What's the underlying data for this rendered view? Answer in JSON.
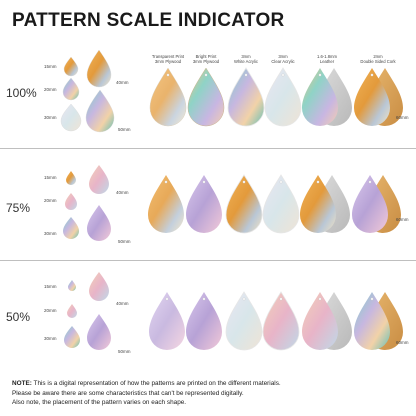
{
  "title": "PATTERN SCALE INDICATOR",
  "columns": [
    {
      "line1": "Transparent Print",
      "line2": "3mm Plywood"
    },
    {
      "line1": "Bright Print",
      "line2": "3mm Plywood"
    },
    {
      "line1": "3mm",
      "line2": "White Acrylic"
    },
    {
      "line1": "3mm",
      "line2": "Clear Acrylic"
    },
    {
      "line1": "1.6-1.8mm",
      "line2": "Leather"
    },
    {
      "line1": "2mm",
      "line2": "Double Sided Cork"
    }
  ],
  "rows": [
    {
      "scale": "100%",
      "size_labels": [
        "15mm",
        "20mm",
        "30mm",
        "40mm",
        "50mm"
      ],
      "row_label": "60mm"
    },
    {
      "scale": "75%",
      "size_labels": [
        "15mm",
        "20mm",
        "30mm",
        "40mm",
        "50mm"
      ],
      "row_label": "60mm"
    },
    {
      "scale": "50%",
      "size_labels": [
        "15mm",
        "20mm",
        "30mm",
        "40mm",
        "50mm"
      ],
      "row_label": "60mm"
    }
  ],
  "note": {
    "lead": "NOTE:",
    "line1": " This is a digital representation of how the patterns are printed on the different materials.",
    "line2": "Please be aware there are some characteristics that can't be represented digitally.",
    "line3": "Also note, the placement of the pattern varies on each shape."
  },
  "colors": {
    "orange": "#e9a54a",
    "teal": "#6fc9c2",
    "lilac": "#b9a6d8",
    "pink": "#e9b1c4",
    "cream": "#f1e4c7",
    "grey": "#cfcfcf"
  }
}
